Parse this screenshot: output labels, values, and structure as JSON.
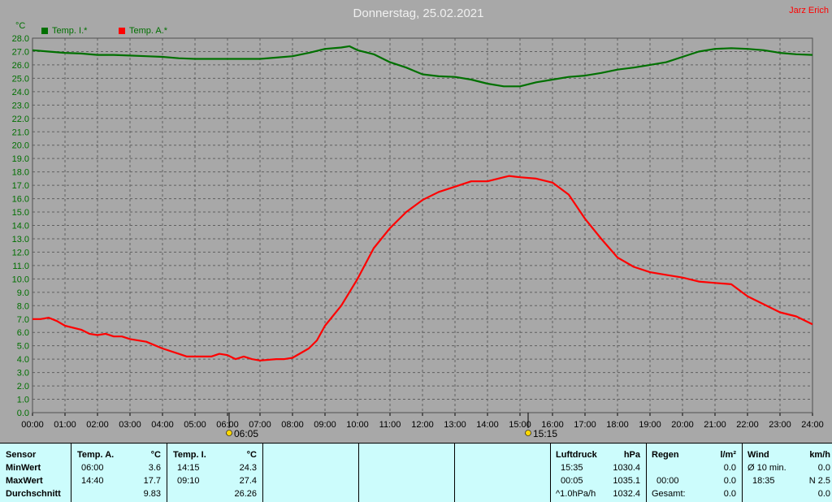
{
  "title": "Donnerstag, 25.02.2021",
  "author": "Jarz Erich",
  "unit_label": "°C",
  "legend": [
    {
      "label": "Temp. I.*",
      "color": "#007000"
    },
    {
      "label": "Temp. A.*",
      "color": "#ff0000"
    }
  ],
  "markers": {
    "sunrise": "06:05",
    "sunset": "15:15"
  },
  "chart_data": {
    "type": "line",
    "xlabel": "",
    "ylabel": "°C",
    "xlim": [
      0,
      24
    ],
    "ylim": [
      0,
      28
    ],
    "ytick_step": 1,
    "grid": true,
    "x_ticks": [
      "00:00",
      "01:00",
      "02:00",
      "03:00",
      "04:00",
      "05:00",
      "06:00",
      "07:00",
      "08:00",
      "09:00",
      "10:00",
      "11:00",
      "12:00",
      "13:00",
      "14:00",
      "15:00",
      "16:00",
      "17:00",
      "18:00",
      "19:00",
      "20:00",
      "21:00",
      "22:00",
      "23:00",
      "24:00"
    ],
    "y_ticks": [
      "0.0",
      "1.0",
      "2.0",
      "3.0",
      "4.0",
      "5.0",
      "6.0",
      "7.0",
      "8.0",
      "9.0",
      "10.0",
      "11.0",
      "12.0",
      "13.0",
      "14.0",
      "15.0",
      "16.0",
      "17.0",
      "18.0",
      "19.0",
      "20.0",
      "21.0",
      "22.0",
      "23.0",
      "24.0",
      "25.0",
      "26.0",
      "27.0",
      "28.0"
    ],
    "series": [
      {
        "name": "Temp. I.*",
        "color": "#007000",
        "x": [
          0,
          0.5,
          1,
          1.5,
          2,
          2.5,
          3,
          3.5,
          4,
          4.5,
          5,
          5.5,
          6,
          6.5,
          7,
          7.5,
          8,
          8.5,
          9,
          9.5,
          9.75,
          10,
          10.5,
          11,
          11.5,
          12,
          12.5,
          13,
          13.5,
          14,
          14.5,
          15,
          15.5,
          16,
          16.5,
          17,
          17.5,
          18,
          18.5,
          19,
          19.5,
          20,
          20.5,
          21,
          21.5,
          22,
          22.5,
          23,
          23.5,
          24
        ],
        "y": [
          27.1,
          27.0,
          26.9,
          26.85,
          26.75,
          26.75,
          26.7,
          26.65,
          26.6,
          26.5,
          26.45,
          26.45,
          26.45,
          26.45,
          26.45,
          26.55,
          26.65,
          26.9,
          27.2,
          27.3,
          27.4,
          27.1,
          26.8,
          26.2,
          25.8,
          25.3,
          25.15,
          25.1,
          24.9,
          24.6,
          24.4,
          24.4,
          24.7,
          24.9,
          25.1,
          25.2,
          25.4,
          25.65,
          25.8,
          26.0,
          26.2,
          26.6,
          27.0,
          27.2,
          27.25,
          27.2,
          27.1,
          26.9,
          26.8,
          26.75
        ]
      },
      {
        "name": "Temp. A.*",
        "color": "#ff0000",
        "x": [
          0,
          0.25,
          0.5,
          0.75,
          1,
          1.5,
          1.75,
          2,
          2.25,
          2.5,
          2.75,
          3,
          3.5,
          4,
          4.5,
          4.75,
          5,
          5.25,
          5.5,
          5.75,
          6,
          6.25,
          6.5,
          6.75,
          7,
          7.5,
          7.75,
          8,
          8.5,
          8.75,
          9,
          9.5,
          10,
          10.5,
          11,
          11.5,
          12,
          12.5,
          13,
          13.5,
          14,
          14.5,
          14.67,
          15,
          15.5,
          16,
          16.5,
          17,
          17.5,
          18,
          18.5,
          19,
          19.5,
          20,
          20.5,
          21,
          21.5,
          22,
          22.5,
          23,
          23.5,
          24
        ],
        "y": [
          7.0,
          7.0,
          7.1,
          6.85,
          6.5,
          6.2,
          5.9,
          5.8,
          5.9,
          5.7,
          5.7,
          5.5,
          5.3,
          4.8,
          4.4,
          4.2,
          4.2,
          4.2,
          4.2,
          4.4,
          4.3,
          4.0,
          4.2,
          4.0,
          3.9,
          4.0,
          4.0,
          4.1,
          4.8,
          5.4,
          6.5,
          8.0,
          10.0,
          12.3,
          13.8,
          15.0,
          15.9,
          16.5,
          16.9,
          17.3,
          17.3,
          17.6,
          17.7,
          17.6,
          17.5,
          17.2,
          16.3,
          14.5,
          13.0,
          11.6,
          10.9,
          10.5,
          10.3,
          10.1,
          9.8,
          9.7,
          9.6,
          8.7,
          8.1,
          7.5,
          7.2,
          6.6
        ]
      }
    ]
  },
  "footer": {
    "sensor": {
      "header": "Sensor",
      "min": "MinWert",
      "max": "MaxWert",
      "avg": "Durchschnitt"
    },
    "temp_a": {
      "header": "Temp. A.",
      "unit": "°C",
      "min_time": "06:00",
      "min_val": "3.6",
      "max_time": "14:40",
      "max_val": "17.7",
      "avg": "9.83"
    },
    "temp_i": {
      "header": "Temp. I.",
      "unit": "°C",
      "min_time": "14:15",
      "min_val": "24.3",
      "max_time": "09:10",
      "max_val": "27.4",
      "avg": "26.26"
    },
    "pressure": {
      "header": "Luftdruck",
      "unit": "hPa",
      "min_time": "15:35",
      "min_val": "1030.4",
      "max_time": "00:05",
      "max_val": "1035.1",
      "trend_label": "^1.0hPa/h",
      "trend_val": "1032.4"
    },
    "rain": {
      "header": "Regen",
      "unit": "l/m²",
      "row2_time": "00:00",
      "row2_val": "0.0",
      "total_label": "Gesamt:",
      "total_val": "0.0",
      "row1_val": "0.0"
    },
    "wind": {
      "header": "Wind",
      "unit": "km/h",
      "avg_label": "Ø 10 min.",
      "avg_val": "0.0",
      "time": "18:35",
      "max_val": "N 2.5",
      "row3_val": "0.0"
    }
  }
}
